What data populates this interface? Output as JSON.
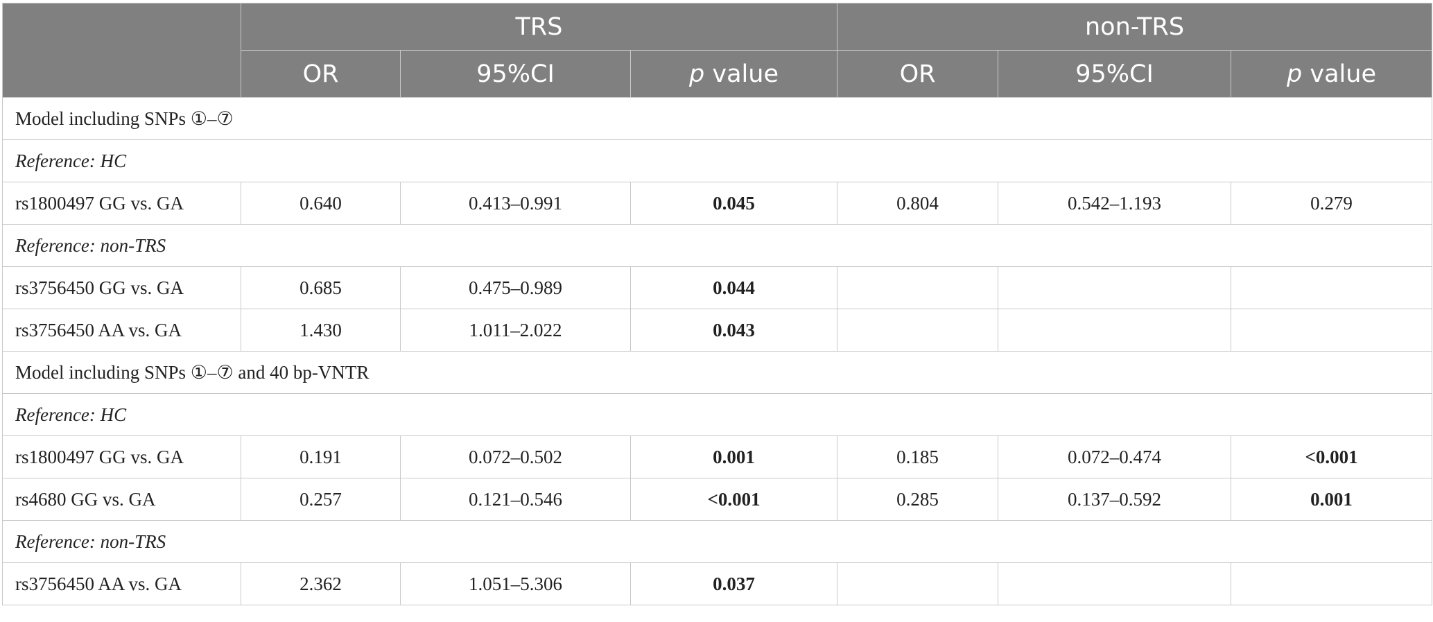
{
  "header": {
    "group1": "TRS",
    "group2": "non-TRS",
    "col_or": "OR",
    "col_ci": "95%CI",
    "col_p_italic": "p",
    "col_p_rest": " value"
  },
  "sections": [
    {
      "title": "Model including SNPs ①–⑦",
      "groups": [
        {
          "reference": "Reference: HC",
          "rows": [
            {
              "label": "rs1800497 GG vs. GA",
              "trs_or": "0.640",
              "trs_ci": "0.413–0.991",
              "trs_p": "0.045",
              "trs_p_bold": true,
              "non_or": "0.804",
              "non_ci": "0.542–1.193",
              "non_p": "0.279",
              "non_p_bold": false
            }
          ]
        },
        {
          "reference": "Reference: non-TRS",
          "rows": [
            {
              "label": "rs3756450 GG vs. GA",
              "trs_or": "0.685",
              "trs_ci": "0.475–0.989",
              "trs_p": "0.044",
              "trs_p_bold": true,
              "non_or": "",
              "non_ci": "",
              "non_p": "",
              "non_p_bold": false
            },
            {
              "label": "rs3756450 AA vs. GA",
              "trs_or": "1.430",
              "trs_ci": "1.011–2.022",
              "trs_p": "0.043",
              "trs_p_bold": true,
              "non_or": "",
              "non_ci": "",
              "non_p": "",
              "non_p_bold": false
            }
          ]
        }
      ]
    },
    {
      "title": "Model including SNPs ①–⑦ and 40 bp-VNTR",
      "groups": [
        {
          "reference": "Reference: HC",
          "rows": [
            {
              "label": "rs1800497 GG vs. GA",
              "trs_or": "0.191",
              "trs_ci": "0.072–0.502",
              "trs_p": "0.001",
              "trs_p_bold": true,
              "non_or": "0.185",
              "non_ci": "0.072–0.474",
              "non_p": "<0.001",
              "non_p_bold": true
            },
            {
              "label": "rs4680 GG vs. GA",
              "trs_or": "0.257",
              "trs_ci": "0.121–0.546",
              "trs_p": "<0.001",
              "trs_p_bold": true,
              "non_or": "0.285",
              "non_ci": "0.137–0.592",
              "non_p": "0.001",
              "non_p_bold": true
            }
          ]
        },
        {
          "reference": "Reference: non-TRS",
          "rows": [
            {
              "label": "rs3756450 AA vs. GA",
              "trs_or": "2.362",
              "trs_ci": "1.051–5.306",
              "trs_p": "0.037",
              "trs_p_bold": true,
              "non_or": "",
              "non_ci": "",
              "non_p": "",
              "non_p_bold": false
            }
          ]
        }
      ]
    }
  ]
}
